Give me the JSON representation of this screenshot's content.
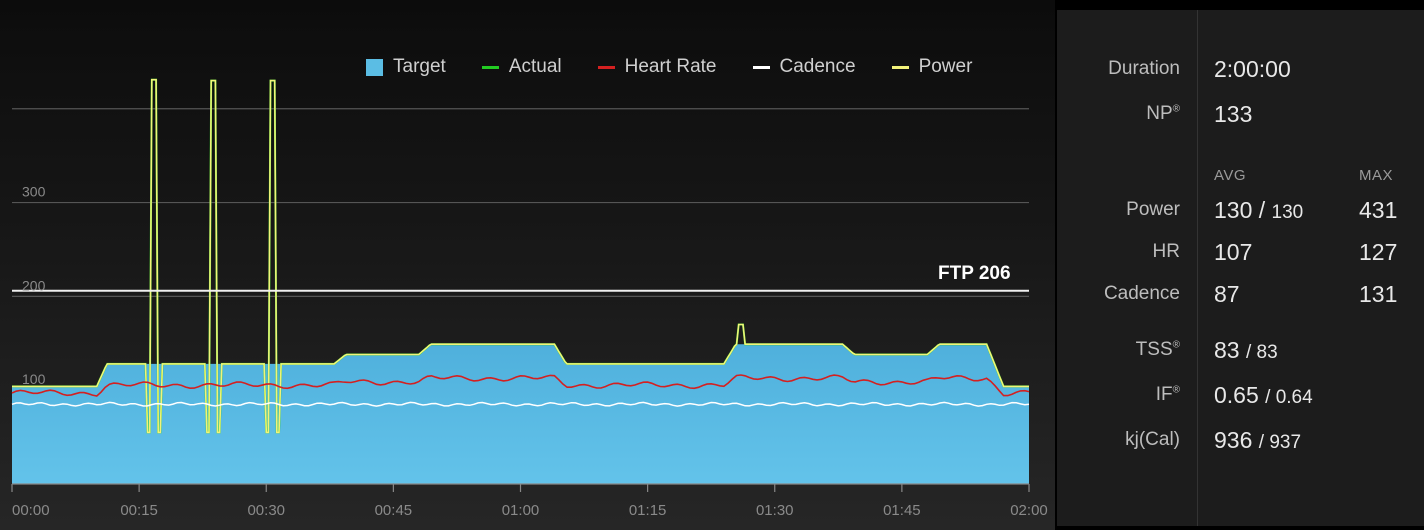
{
  "legend": [
    {
      "label": "Target",
      "color": "#5bbde4",
      "kind": "box"
    },
    {
      "label": "Actual",
      "color": "#22cc22",
      "kind": "line"
    },
    {
      "label": "Heart Rate",
      "color": "#d42020",
      "kind": "line"
    },
    {
      "label": "Cadence",
      "color": "#ffffff",
      "kind": "line"
    },
    {
      "label": "Power",
      "color": "#f2f27a",
      "kind": "line"
    }
  ],
  "ftp_label": "FTP 206",
  "chart_data": {
    "type": "area",
    "ftp": 206,
    "y_gridlines": [
      100,
      200,
      300,
      400
    ],
    "y_tick_labels": [
      "100",
      "200",
      "300"
    ],
    "x_tick_labels": [
      "00:00",
      "00:15",
      "00:30",
      "00:45",
      "01:00",
      "01:15",
      "01:30",
      "01:45",
      "02:00"
    ],
    "x_range_min": [
      0,
      120
    ],
    "ylim": [
      0,
      420
    ],
    "target_segments": [
      {
        "start_min": 0,
        "end_min": 5,
        "watts": 104
      },
      {
        "start_min": 5,
        "end_min": 5.6,
        "watts_from": 104,
        "watts_to": 128
      },
      {
        "start_min": 5.6,
        "end_min": 19,
        "watts": 128
      },
      {
        "start_min": 19,
        "end_min": 19.7,
        "watts_from": 128,
        "watts_to": 138
      },
      {
        "start_min": 19.7,
        "end_min": 24,
        "watts": 138
      },
      {
        "start_min": 24,
        "end_min": 24.7,
        "watts_from": 138,
        "watts_to": 149
      },
      {
        "start_min": 24.7,
        "end_min": 32,
        "watts": 149
      },
      {
        "start_min": 32,
        "end_min": 32.7,
        "watts_from": 149,
        "watts_to": 128
      },
      {
        "start_min": 32.7,
        "end_min": 42,
        "watts": 128
      },
      {
        "start_min": 42,
        "end_min": 42.7,
        "watts_from": 128,
        "watts_to": 149
      },
      {
        "start_min": 42.7,
        "end_min": 49,
        "watts": 149
      },
      {
        "start_min": 49,
        "end_min": 49.7,
        "watts_from": 149,
        "watts_to": 138
      },
      {
        "start_min": 49.7,
        "end_min": 54,
        "watts": 138
      },
      {
        "start_min": 54,
        "end_min": 54.7,
        "watts_from": 138,
        "watts_to": 149
      },
      {
        "start_min": 54.7,
        "end_min": 57.5,
        "watts": 149
      },
      {
        "start_min": 57.5,
        "end_min": 58.5,
        "watts_from": 149,
        "watts_to": 104
      },
      {
        "start_min": 58.5,
        "end_min": 60,
        "watts": 104
      }
    ],
    "power_spikes": [
      {
        "at_min": 8.4,
        "peak": 431,
        "dip": 55
      },
      {
        "at_min": 11.9,
        "peak": 430,
        "dip": 55
      },
      {
        "at_min": 15.4,
        "peak": 430,
        "dip": 55
      },
      {
        "at_min": 43.0,
        "peak": 170
      }
    ],
    "heart_rate_level": 107,
    "cadence_level": 87
  },
  "stats": {
    "duration_label": "Duration",
    "duration_value": "2:00:00",
    "np_label": "NP",
    "np_sup": "®",
    "np_value": "133",
    "avg_header": "AVG",
    "max_header": "MAX",
    "power_label": "Power",
    "power_avg": "130 /",
    "power_avg2": "130",
    "power_max": "431",
    "hr_label": "HR",
    "hr_avg": "107",
    "hr_max": "127",
    "cadence_label": "Cadence",
    "cadence_avg": "87",
    "cadence_max": "131",
    "tss_label": "TSS",
    "tss_sup": "®",
    "tss_value": "83",
    "tss_value2": "/ 83",
    "if_label": "IF",
    "if_sup": "®",
    "if_value": "0.65",
    "if_value2": "/ 0.64",
    "kj_label": "kj(Cal)",
    "kj_value": "936",
    "kj_value2": "/ 937"
  }
}
